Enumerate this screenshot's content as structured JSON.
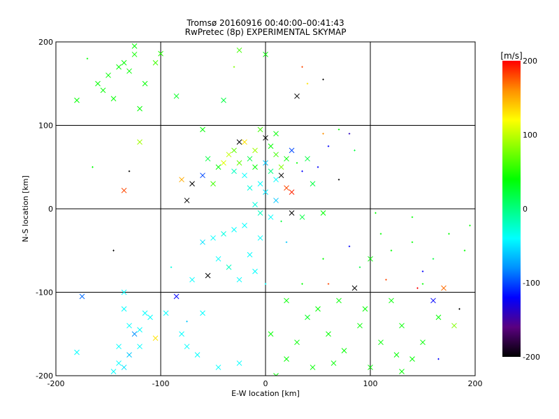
{
  "chart_data": {
    "type": "scatter",
    "title": "Tromsø 20160916 00:40:00–00:41:43",
    "subtitle": "RwPretec (8p) EXPERIMENTAL SKYMAP",
    "xlabel": "E-W location [km]",
    "ylabel": "N-S location [km]",
    "xlim": [
      -200,
      200
    ],
    "ylim": [
      -200,
      200
    ],
    "xticks": [
      "-200",
      "-100",
      "0",
      "100",
      "200"
    ],
    "yticks": [
      "-200",
      "-100",
      "0",
      "100",
      "200"
    ],
    "grid": true,
    "colorbar": {
      "label": "[m/s]",
      "range": [
        -200,
        200
      ],
      "ticks": [
        "-200",
        "-100",
        "0",
        "100",
        "200"
      ],
      "position": "right",
      "stops": [
        "#000000",
        "#5a0080",
        "#0000ff",
        "#0090ff",
        "#00ffff",
        "#00ff80",
        "#00ff00",
        "#80ff00",
        "#ffff00",
        "#ff9000",
        "#ff0000"
      ]
    },
    "points": [
      [
        -140,
        170,
        40,
        "x"
      ],
      [
        -150,
        160,
        40,
        "x"
      ],
      [
        -135,
        175,
        40,
        "x"
      ],
      [
        -125,
        185,
        45,
        "x"
      ],
      [
        -160,
        150,
        40,
        "x"
      ],
      [
        -180,
        130,
        40,
        "x"
      ],
      [
        -115,
        150,
        40,
        "x"
      ],
      [
        -120,
        120,
        40,
        "x"
      ],
      [
        -105,
        175,
        60,
        "x"
      ],
      [
        -100,
        186,
        50,
        "x"
      ],
      [
        -145,
        132,
        40,
        "x"
      ],
      [
        -155,
        142,
        40,
        "x"
      ],
      [
        -130,
        165,
        40,
        "x"
      ],
      [
        -170,
        180,
        40,
        "+"
      ],
      [
        -125,
        195,
        40,
        "x"
      ],
      [
        -85,
        135,
        30,
        "x"
      ],
      [
        -60,
        95,
        40,
        "x"
      ],
      [
        -40,
        130,
        20,
        "x"
      ],
      [
        -30,
        170,
        80,
        "+"
      ],
      [
        0,
        185,
        40,
        "x"
      ],
      [
        -25,
        190,
        60,
        "x"
      ],
      [
        40,
        150,
        130,
        "+"
      ],
      [
        35,
        170,
        180,
        "+"
      ],
      [
        30,
        135,
        -200,
        "x"
      ],
      [
        55,
        155,
        -200,
        "+"
      ],
      [
        -120,
        80,
        90,
        "x"
      ],
      [
        -135,
        22,
        180,
        "x"
      ],
      [
        -130,
        45,
        -200,
        "+"
      ],
      [
        -165,
        50,
        40,
        "+"
      ],
      [
        -20,
        80,
        130,
        "x"
      ],
      [
        -10,
        70,
        90,
        "x"
      ],
      [
        0,
        85,
        -200,
        "x"
      ],
      [
        5,
        75,
        40,
        "x"
      ],
      [
        10,
        65,
        60,
        "x"
      ],
      [
        -15,
        60,
        20,
        "x"
      ],
      [
        -25,
        55,
        70,
        "x"
      ],
      [
        -30,
        45,
        -20,
        "x"
      ],
      [
        -20,
        40,
        -40,
        "x"
      ],
      [
        -10,
        50,
        40,
        "x"
      ],
      [
        0,
        55,
        -60,
        "x"
      ],
      [
        5,
        45,
        0,
        "x"
      ],
      [
        10,
        35,
        -40,
        "x"
      ],
      [
        15,
        50,
        80,
        "x"
      ],
      [
        20,
        60,
        40,
        "x"
      ],
      [
        25,
        70,
        -100,
        "x"
      ],
      [
        30,
        55,
        40,
        "+"
      ],
      [
        35,
        45,
        -120,
        "+"
      ],
      [
        40,
        60,
        20,
        "x"
      ],
      [
        45,
        30,
        20,
        "x"
      ],
      [
        50,
        50,
        -120,
        "+"
      ],
      [
        20,
        25,
        180,
        "x"
      ],
      [
        25,
        20,
        190,
        "x"
      ],
      [
        -5,
        30,
        -40,
        "x"
      ],
      [
        -15,
        25,
        -30,
        "x"
      ],
      [
        0,
        20,
        -50,
        "x"
      ],
      [
        10,
        10,
        -60,
        "x"
      ],
      [
        15,
        40,
        -200,
        "x"
      ],
      [
        -35,
        65,
        100,
        "x"
      ],
      [
        -40,
        55,
        110,
        "x"
      ],
      [
        -45,
        50,
        40,
        "x"
      ],
      [
        -30,
        70,
        70,
        "x"
      ],
      [
        -25,
        80,
        -200,
        "x"
      ],
      [
        -55,
        60,
        20,
        "x"
      ],
      [
        -60,
        40,
        -100,
        "x"
      ],
      [
        -70,
        30,
        -200,
        "x"
      ],
      [
        -75,
        10,
        -200,
        "x"
      ],
      [
        -80,
        35,
        150,
        "x"
      ],
      [
        -50,
        30,
        60,
        "x"
      ],
      [
        -10,
        5,
        -30,
        "x"
      ],
      [
        -5,
        -5,
        -20,
        "x"
      ],
      [
        5,
        -10,
        -40,
        "x"
      ],
      [
        15,
        -15,
        20,
        "+"
      ],
      [
        25,
        -5,
        -200,
        "x"
      ],
      [
        35,
        -10,
        20,
        "x"
      ],
      [
        55,
        -5,
        40,
        "x"
      ],
      [
        70,
        35,
        -200,
        "+"
      ],
      [
        85,
        70,
        20,
        "+"
      ],
      [
        60,
        75,
        -120,
        "+"
      ],
      [
        80,
        90,
        -140,
        "+"
      ],
      [
        70,
        95,
        40,
        "+"
      ],
      [
        55,
        90,
        160,
        "+"
      ],
      [
        -5,
        95,
        60,
        "x"
      ],
      [
        10,
        90,
        40,
        "x"
      ],
      [
        -20,
        -20,
        -40,
        "x"
      ],
      [
        -30,
        -25,
        -40,
        "x"
      ],
      [
        -40,
        -30,
        -30,
        "x"
      ],
      [
        -50,
        -35,
        -40,
        "x"
      ],
      [
        -60,
        -40,
        -50,
        "x"
      ],
      [
        -45,
        -60,
        -40,
        "x"
      ],
      [
        -35,
        -70,
        -20,
        "x"
      ],
      [
        -25,
        -85,
        -40,
        "x"
      ],
      [
        -55,
        -80,
        -200,
        "x"
      ],
      [
        -70,
        -85,
        -40,
        "x"
      ],
      [
        -85,
        -105,
        -120,
        "x"
      ],
      [
        -15,
        -55,
        -40,
        "x"
      ],
      [
        -5,
        -35,
        -40,
        "x"
      ],
      [
        20,
        -40,
        -60,
        "+"
      ],
      [
        -145,
        -50,
        -200,
        "+"
      ],
      [
        -90,
        -70,
        -30,
        "+"
      ],
      [
        -10,
        -75,
        -40,
        "x"
      ],
      [
        0,
        -90,
        -40,
        "+"
      ],
      [
        -175,
        -105,
        -90,
        "x"
      ],
      [
        -135,
        -100,
        -40,
        "x"
      ],
      [
        -135,
        -120,
        -40,
        "x"
      ],
      [
        -130,
        -140,
        -40,
        "x"
      ],
      [
        -125,
        -150,
        -80,
        "x"
      ],
      [
        -120,
        -145,
        -40,
        "x"
      ],
      [
        -115,
        -125,
        -40,
        "x"
      ],
      [
        -110,
        -130,
        -40,
        "x"
      ],
      [
        -140,
        -165,
        -40,
        "x"
      ],
      [
        -140,
        -185,
        -40,
        "x"
      ],
      [
        -135,
        -190,
        -50,
        "x"
      ],
      [
        -145,
        -195,
        -40,
        "x"
      ],
      [
        -130,
        -175,
        -60,
        "x"
      ],
      [
        -120,
        -165,
        -40,
        "x"
      ],
      [
        -180,
        -172,
        -40,
        "x"
      ],
      [
        -105,
        -155,
        130,
        "x"
      ],
      [
        -95,
        -125,
        -40,
        "x"
      ],
      [
        -80,
        -150,
        -40,
        "x"
      ],
      [
        -75,
        -165,
        -40,
        "x"
      ],
      [
        -65,
        -175,
        -40,
        "x"
      ],
      [
        -45,
        -190,
        -40,
        "x"
      ],
      [
        -25,
        -185,
        -40,
        "x"
      ],
      [
        -60,
        -125,
        -40,
        "x"
      ],
      [
        -75,
        -135,
        -60,
        "+"
      ],
      [
        20,
        -110,
        40,
        "x"
      ],
      [
        40,
        -130,
        30,
        "x"
      ],
      [
        60,
        -150,
        40,
        "x"
      ],
      [
        75,
        -170,
        40,
        "x"
      ],
      [
        85,
        -95,
        -200,
        "x"
      ],
      [
        95,
        -120,
        40,
        "x"
      ],
      [
        110,
        -160,
        40,
        "x"
      ],
      [
        120,
        -110,
        40,
        "x"
      ],
      [
        130,
        -140,
        40,
        "x"
      ],
      [
        140,
        -180,
        40,
        "x"
      ],
      [
        150,
        -90,
        40,
        "+"
      ],
      [
        160,
        -110,
        -120,
        "x"
      ],
      [
        170,
        -95,
        170,
        "x"
      ],
      [
        180,
        -140,
        80,
        "x"
      ],
      [
        185,
        -120,
        -200,
        "+"
      ],
      [
        165,
        -130,
        40,
        "x"
      ],
      [
        100,
        -60,
        40,
        "x"
      ],
      [
        120,
        -50,
        40,
        "+"
      ],
      [
        140,
        -40,
        40,
        "+"
      ],
      [
        160,
        -60,
        20,
        "+"
      ],
      [
        175,
        -30,
        40,
        "+"
      ],
      [
        190,
        -50,
        40,
        "+"
      ],
      [
        110,
        -30,
        40,
        "+"
      ],
      [
        90,
        -70,
        20,
        "+"
      ],
      [
        80,
        -45,
        -120,
        "+"
      ],
      [
        60,
        -90,
        180,
        "+"
      ],
      [
        70,
        -110,
        40,
        "x"
      ],
      [
        30,
        -160,
        40,
        "x"
      ],
      [
        45,
        -190,
        40,
        "x"
      ],
      [
        20,
        -180,
        40,
        "x"
      ],
      [
        5,
        -150,
        40,
        "x"
      ],
      [
        10,
        -200,
        40,
        "x"
      ],
      [
        65,
        -185,
        40,
        "x"
      ],
      [
        100,
        -190,
        40,
        "x"
      ],
      [
        130,
        -195,
        40,
        "x"
      ],
      [
        150,
        -160,
        40,
        "x"
      ],
      [
        125,
        -175,
        40,
        "x"
      ],
      [
        90,
        -140,
        40,
        "x"
      ],
      [
        50,
        -120,
        40,
        "x"
      ],
      [
        35,
        -90,
        40,
        "+"
      ],
      [
        55,
        -60,
        40,
        "+"
      ],
      [
        150,
        -75,
        -120,
        "+"
      ],
      [
        145,
        -95,
        200,
        "+"
      ],
      [
        115,
        -85,
        180,
        "+"
      ],
      [
        165,
        -180,
        -120,
        "+"
      ],
      [
        195,
        -20,
        40,
        "+"
      ],
      [
        105,
        -5,
        40,
        "+"
      ],
      [
        140,
        -10,
        40,
        "+"
      ]
    ]
  }
}
